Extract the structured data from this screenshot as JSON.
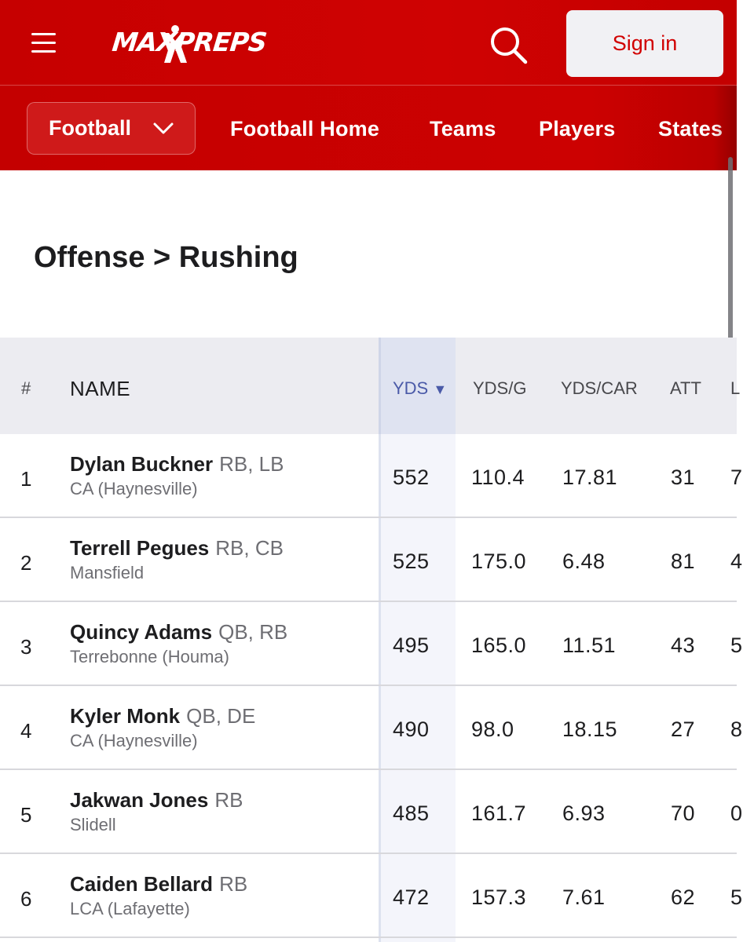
{
  "header": {
    "logo_text": "MAXPREPS",
    "sign_in_label": "Sign in",
    "brand_color": "#c60000"
  },
  "subnav": {
    "sport": "Football",
    "links": [
      "Football Home",
      "Teams",
      "Players",
      "States"
    ]
  },
  "page": {
    "title": "Offense > Rushing"
  },
  "table": {
    "columns": [
      "#",
      "NAME",
      "YDS",
      "YDS/G",
      "YDS/CAR",
      "ATT",
      "L"
    ],
    "sort_indicator": "▼",
    "rows": [
      {
        "rank": "1",
        "name": "Dylan Buckner",
        "pos": "RB, LB",
        "school": "CA (Haynesville)",
        "yds": "552",
        "ydsg": "110.4",
        "ydscar": "17.81",
        "att": "31",
        "next": "7"
      },
      {
        "rank": "2",
        "name": "Terrell Pegues",
        "pos": "RB, CB",
        "school": "Mansfield",
        "yds": "525",
        "ydsg": "175.0",
        "ydscar": "6.48",
        "att": "81",
        "next": "4"
      },
      {
        "rank": "3",
        "name": "Quincy Adams",
        "pos": "QB, RB",
        "school": "Terrebonne (Houma)",
        "yds": "495",
        "ydsg": "165.0",
        "ydscar": "11.51",
        "att": "43",
        "next": "5"
      },
      {
        "rank": "4",
        "name": "Kyler Monk",
        "pos": "QB, DE",
        "school": "CA (Haynesville)",
        "yds": "490",
        "ydsg": "98.0",
        "ydscar": "18.15",
        "att": "27",
        "next": "8"
      },
      {
        "rank": "5",
        "name": "Jakwan Jones",
        "pos": "RB",
        "school": "Slidell",
        "yds": "485",
        "ydsg": "161.7",
        "ydscar": "6.93",
        "att": "70",
        "next": "0"
      },
      {
        "rank": "6",
        "name": "Caiden Bellard",
        "pos": "RB",
        "school": "LCA (Lafayette)",
        "yds": "472",
        "ydsg": "157.3",
        "ydscar": "7.61",
        "att": "62",
        "next": "5"
      }
    ]
  }
}
